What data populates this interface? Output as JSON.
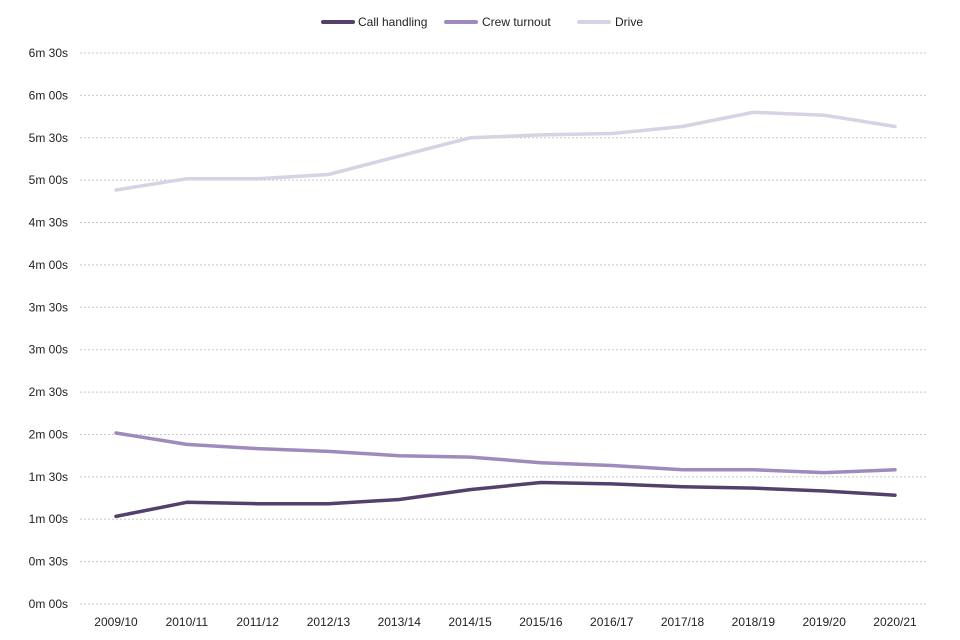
{
  "chart_data": {
    "type": "line",
    "title": "",
    "xlabel": "",
    "ylabel": "",
    "legend_position": "top-center",
    "grid": true,
    "categories": [
      "2009/10",
      "2010/11",
      "2011/12",
      "2012/13",
      "2013/14",
      "2014/15",
      "2015/16",
      "2016/17",
      "2017/18",
      "2018/19",
      "2019/20",
      "2020/21"
    ],
    "ylim": [
      0,
      390
    ],
    "yticks": [
      0,
      30,
      60,
      90,
      120,
      150,
      180,
      210,
      240,
      270,
      300,
      330,
      360,
      390
    ],
    "ytick_labels": [
      "0m 00s",
      "0m 30s",
      "1m 00s",
      "1m 30s",
      "2m 00s",
      "2m 30s",
      "3m 00s",
      "3m 30s",
      "4m 00s",
      "4m 30s",
      "5m 00s",
      "5m 30s",
      "6m 00s",
      "6m 30s"
    ],
    "series": [
      {
        "name": "Call handling",
        "color": "#54406c",
        "values": [
          62,
          72,
          71,
          71,
          74,
          81,
          86,
          85,
          83,
          82,
          80,
          77
        ]
      },
      {
        "name": "Crew turnout",
        "color": "#9f8bbb",
        "values": [
          121,
          113,
          110,
          108,
          105,
          104,
          100,
          98,
          95,
          95,
          93,
          95
        ]
      },
      {
        "name": "Drive",
        "color": "#d9d1e4",
        "values": [
          293,
          301,
          301,
          304,
          317,
          330,
          332,
          333,
          338,
          348,
          346,
          338
        ]
      }
    ]
  }
}
